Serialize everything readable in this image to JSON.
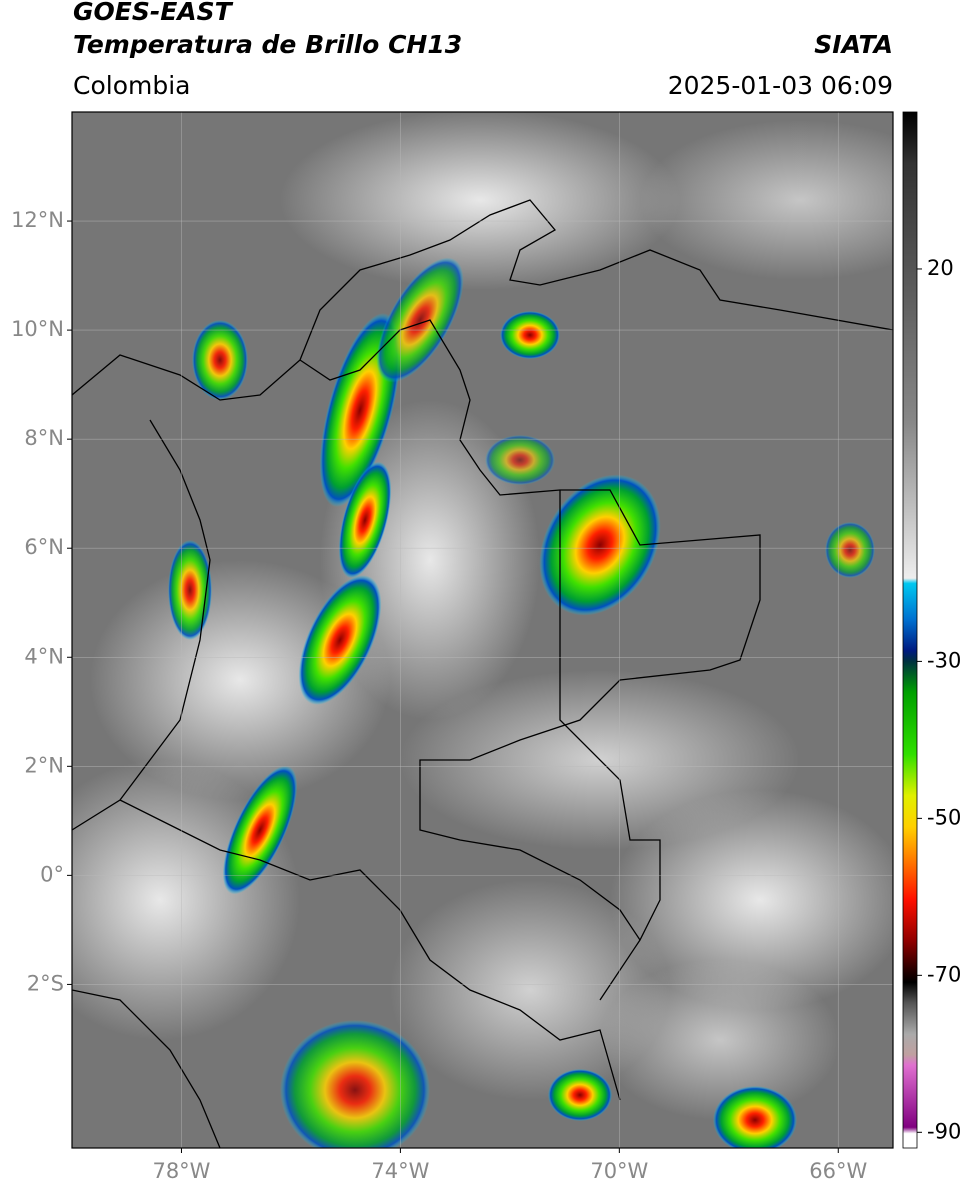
{
  "chart_data": {
    "type": "map",
    "title": "GOES-EAST",
    "subtitle": "Temperatura de Brillo CH13",
    "source": "SIATA",
    "region": "Colombia",
    "timestamp": "2025-01-03 06:09",
    "xlim": [
      -80,
      -65
    ],
    "ylim": [
      -5,
      14
    ],
    "xticks": [
      {
        "value": -78,
        "label": "78°W"
      },
      {
        "value": -74,
        "label": "74°W"
      },
      {
        "value": -70,
        "label": "70°W"
      },
      {
        "value": -66,
        "label": "66°W"
      }
    ],
    "yticks": [
      {
        "value": 12,
        "label": "12°N"
      },
      {
        "value": 10,
        "label": "10°N"
      },
      {
        "value": 8,
        "label": "8°N"
      },
      {
        "value": 6,
        "label": "6°N"
      },
      {
        "value": 4,
        "label": "4°N"
      },
      {
        "value": 2,
        "label": "2°N"
      },
      {
        "value": 0,
        "label": "0°"
      },
      {
        "value": -2,
        "label": "2°S"
      }
    ],
    "grid": true,
    "colorbar": {
      "lim": [
        40,
        -92
      ],
      "ticks": [
        20,
        -30,
        -50,
        -70,
        -90
      ]
    }
  }
}
